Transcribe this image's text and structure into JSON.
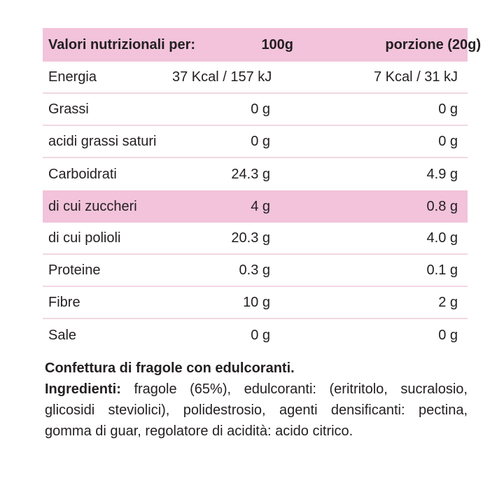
{
  "colors": {
    "band_pink": "#f2c3db",
    "divider_pink": "#f2d7e3",
    "text": "#231f20",
    "background": "#ffffff"
  },
  "table": {
    "header": {
      "col1": "Valori nutrizionali per:",
      "col2": "100g",
      "col3": "porzione (20g)"
    },
    "rows": [
      {
        "label": "Energia",
        "per100g": "37 Kcal / 157 kJ",
        "portion": "7 Kcal / 31 kJ"
      },
      {
        "label": "Grassi",
        "per100g": "0 g",
        "portion": "0 g"
      },
      {
        "label": "acidi grassi saturi",
        "per100g": "0 g",
        "portion": "0 g"
      },
      {
        "label": "Carboidrati",
        "per100g": "24.3 g",
        "portion": "4.9 g"
      },
      {
        "label": "di cui zuccheri",
        "per100g": "4 g",
        "portion": "0.8 g"
      },
      {
        "label": "di cui polioli",
        "per100g": "20.3 g",
        "portion": "4.0 g"
      },
      {
        "label": "Proteine",
        "per100g": "0.3 g",
        "portion": "0.1 g"
      },
      {
        "label": "Fibre",
        "per100g": "10 g",
        "portion": "2 g"
      },
      {
        "label": "Sale",
        "per100g": "0 g",
        "portion": "0 g"
      }
    ]
  },
  "description": {
    "title": "Confettura di fragole con edulcoranti.",
    "ingredients_label": "Ingredienti:",
    "ingredients_text": "fragole (65%), edulcoranti: (eritritolo, sucralosio, glicosidi steviolici), polidestrosio, agenti densificanti: pectina, gomma di guar, regolatore di acidità: acido citrico."
  }
}
